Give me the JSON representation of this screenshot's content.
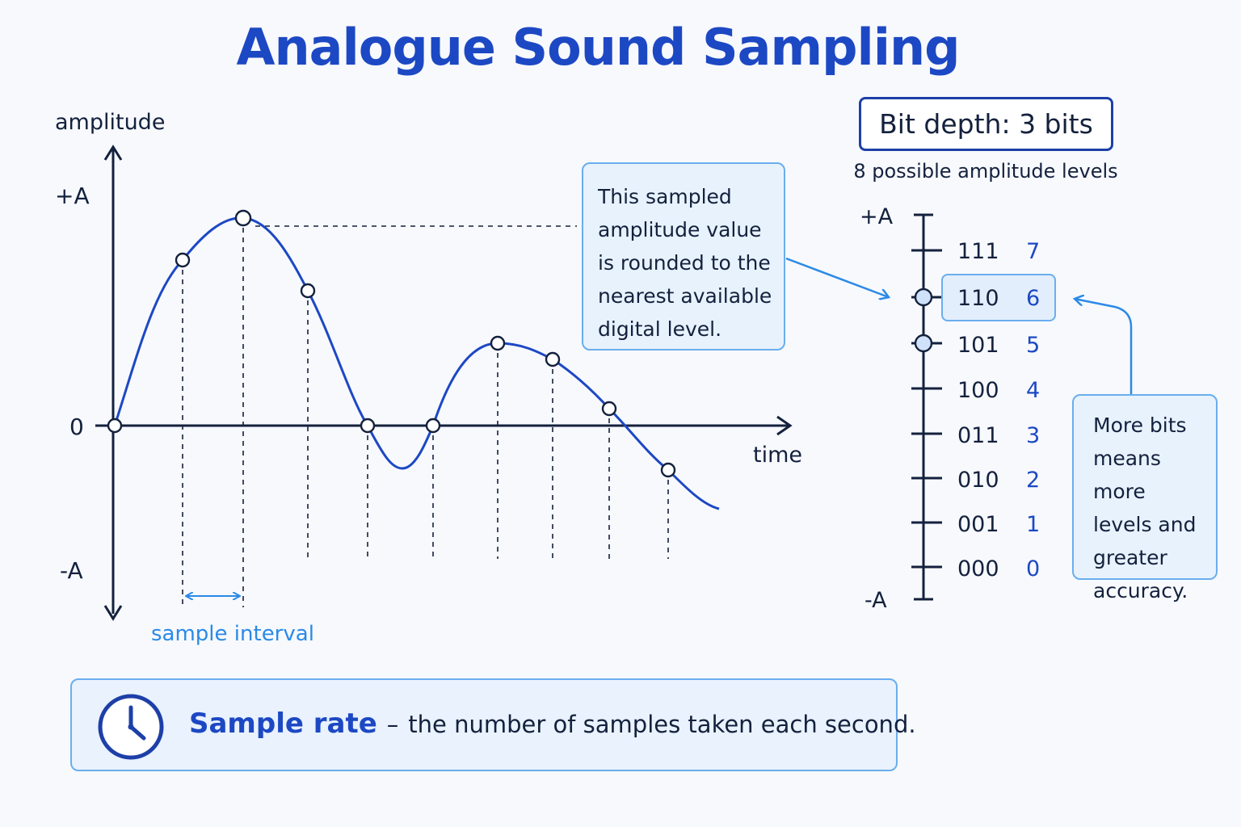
{
  "title": "Analogue Sound Sampling",
  "graph": {
    "y_axis_label": "amplitude",
    "x_axis_label": "time",
    "y_ticks": {
      "top": "+A",
      "zero": "0",
      "bottom": "-A"
    },
    "sample_interval_label": "sample interval",
    "sample_points": [
      {
        "t": 0,
        "amp": 0
      },
      {
        "t": 1,
        "amp": 0.53
      },
      {
        "t": 2,
        "amp": 0.66
      },
      {
        "t": 3,
        "amp": 0.43
      },
      {
        "t": 4,
        "amp": 0
      },
      {
        "t": 5,
        "amp": 0
      },
      {
        "t": 6,
        "amp": 0.26
      },
      {
        "t": 7,
        "amp": 0.21
      },
      {
        "t": 8,
        "amp": 0.05
      },
      {
        "t": 9,
        "amp": -0.15
      }
    ],
    "colors": {
      "wave": "#1d48c4",
      "axis": "#14213d",
      "accent": "#2b8ae6"
    }
  },
  "callout_round": "This sampled amplitude value is rounded to the nearest available digital level.",
  "bit_depth": {
    "label": "Bit depth: 3 bits",
    "caption": "8 possible amplitude levels",
    "top_label": "+A",
    "bottom_label": "-A",
    "levels": [
      {
        "binary": "111",
        "decimal": "7"
      },
      {
        "binary": "110",
        "decimal": "6"
      },
      {
        "binary": "101",
        "decimal": "5"
      },
      {
        "binary": "100",
        "decimal": "4"
      },
      {
        "binary": "011",
        "decimal": "3"
      },
      {
        "binary": "010",
        "decimal": "2"
      },
      {
        "binary": "001",
        "decimal": "1"
      },
      {
        "binary": "000",
        "decimal": "0"
      }
    ],
    "highlighted_level": "6"
  },
  "callout_bits": "More bits means more levels and greater accuracy.",
  "sample_rate": {
    "term": "Sample rate",
    "separator": "–",
    "definition": "the number of samples taken each second.",
    "icon": "clock-icon"
  }
}
